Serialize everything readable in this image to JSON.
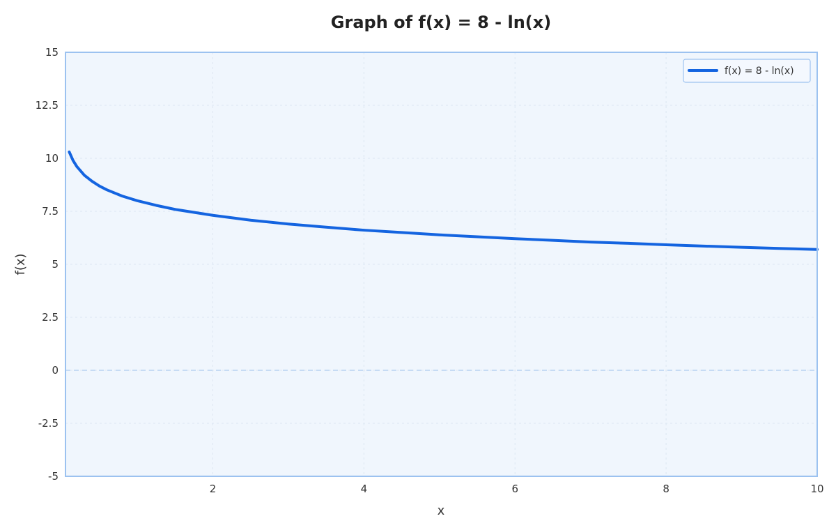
{
  "chart_data": {
    "type": "line",
    "title": "Graph of f(x) = 8 - ln(x)",
    "xlabel": "x",
    "ylabel": "f(x)",
    "xlim": [
      0.05,
      10
    ],
    "ylim": [
      -5,
      15
    ],
    "x_ticks": [
      2,
      4,
      6,
      8,
      10
    ],
    "y_ticks": [
      -5,
      -2.5,
      0,
      2.5,
      5,
      7.5,
      10,
      12.5,
      15
    ],
    "x_tick_labels": [
      "2",
      "4",
      "6",
      "8",
      "10"
    ],
    "y_tick_labels": [
      "-5",
      "-2.5",
      "0",
      "2.5",
      "5",
      "7.5",
      "10",
      "12.5",
      "15"
    ],
    "grid": true,
    "zero_line": true,
    "legend_position": "top-right",
    "series": [
      {
        "name": "f(x) = 8 - ln(x)",
        "color": "#1464e0",
        "x": [
          0.1,
          0.15,
          0.2,
          0.3,
          0.4,
          0.5,
          0.6,
          0.8,
          1,
          1.25,
          1.5,
          2,
          2.5,
          3,
          3.5,
          4,
          4.5,
          5,
          5.5,
          6,
          6.5,
          7,
          7.5,
          8,
          8.5,
          9,
          9.5,
          10
        ],
        "y": [
          10.3,
          9.9,
          9.61,
          9.2,
          8.92,
          8.69,
          8.51,
          8.22,
          8.0,
          7.78,
          7.59,
          7.31,
          7.08,
          6.9,
          6.75,
          6.61,
          6.5,
          6.39,
          6.3,
          6.21,
          6.13,
          6.05,
          5.99,
          5.92,
          5.86,
          5.8,
          5.75,
          5.7
        ]
      }
    ]
  },
  "colors": {
    "plot_background": "#f0f6fd",
    "plot_border": "#9cc2f0",
    "grid": "#dde7f3",
    "zero_line": "#b8d2f2"
  }
}
